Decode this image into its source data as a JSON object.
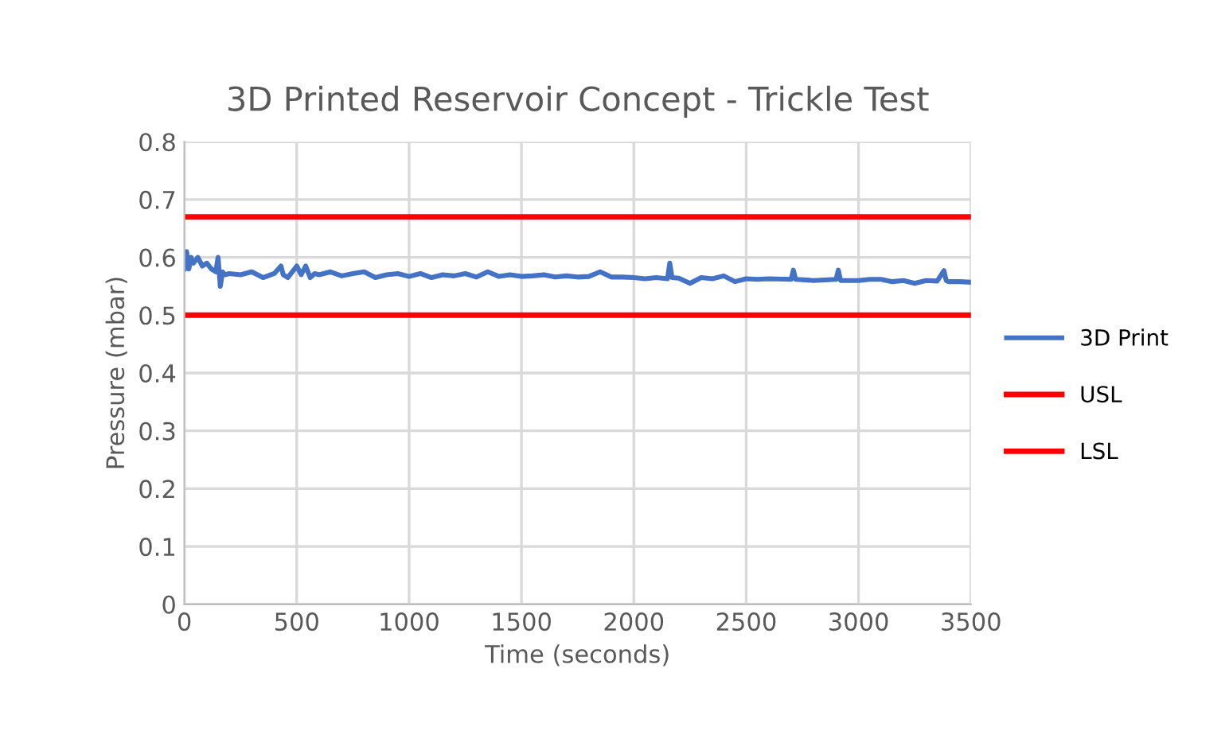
{
  "chart_data": {
    "type": "line",
    "title": "3D Printed Reservoir Concept - Trickle Test",
    "xlabel": "Time (seconds)",
    "ylabel": "Pressure (mbar)",
    "xlim": [
      0,
      3500
    ],
    "ylim": [
      0,
      0.8
    ],
    "xticks": [
      0,
      500,
      1000,
      1500,
      2000,
      2500,
      3000,
      3500
    ],
    "yticks": [
      0,
      0.1,
      0.2,
      0.3,
      0.4,
      0.5,
      0.6,
      0.7,
      0.8
    ],
    "grid": true,
    "legend": "right",
    "marker": "none",
    "line_style": "solid",
    "series": [
      {
        "name": "3D Print",
        "color": "#4472c4",
        "x": [
          0,
          10,
          20,
          30,
          40,
          60,
          80,
          100,
          120,
          140,
          150,
          160,
          170,
          180,
          200,
          250,
          300,
          350,
          400,
          430,
          440,
          460,
          500,
          520,
          540,
          560,
          580,
          600,
          650,
          700,
          750,
          800,
          850,
          900,
          950,
          1000,
          1050,
          1100,
          1150,
          1200,
          1250,
          1300,
          1350,
          1400,
          1450,
          1500,
          1550,
          1600,
          1650,
          1700,
          1750,
          1800,
          1850,
          1900,
          1950,
          2000,
          2050,
          2100,
          2150,
          2160,
          2170,
          2200,
          2250,
          2300,
          2350,
          2400,
          2450,
          2500,
          2550,
          2600,
          2700,
          2710,
          2720,
          2800,
          2900,
          2910,
          2920,
          3000,
          3050,
          3100,
          3150,
          3200,
          3250,
          3300,
          3350,
          3380,
          3390,
          3400,
          3450,
          3500
        ],
        "values": [
          0.58,
          0.61,
          0.58,
          0.6,
          0.59,
          0.6,
          0.585,
          0.59,
          0.58,
          0.575,
          0.6,
          0.55,
          0.575,
          0.57,
          0.572,
          0.57,
          0.575,
          0.565,
          0.572,
          0.585,
          0.57,
          0.565,
          0.585,
          0.57,
          0.585,
          0.565,
          0.572,
          0.57,
          0.575,
          0.568,
          0.572,
          0.575,
          0.565,
          0.57,
          0.572,
          0.567,
          0.572,
          0.565,
          0.57,
          0.568,
          0.572,
          0.566,
          0.575,
          0.567,
          0.57,
          0.567,
          0.568,
          0.57,
          0.566,
          0.568,
          0.566,
          0.567,
          0.575,
          0.566,
          0.566,
          0.565,
          0.563,
          0.565,
          0.563,
          0.59,
          0.565,
          0.564,
          0.555,
          0.565,
          0.563,
          0.568,
          0.558,
          0.563,
          0.562,
          0.563,
          0.562,
          0.578,
          0.562,
          0.56,
          0.562,
          0.578,
          0.56,
          0.56,
          0.562,
          0.562,
          0.558,
          0.56,
          0.555,
          0.56,
          0.559,
          0.577,
          0.56,
          0.558,
          0.558,
          0.557
        ]
      },
      {
        "name": "USL",
        "color": "#ff0000",
        "x": [
          0,
          3500
        ],
        "values": [
          0.67,
          0.67
        ]
      },
      {
        "name": "LSL",
        "color": "#ff0000",
        "x": [
          0,
          3500
        ],
        "values": [
          0.5,
          0.5
        ]
      }
    ]
  }
}
